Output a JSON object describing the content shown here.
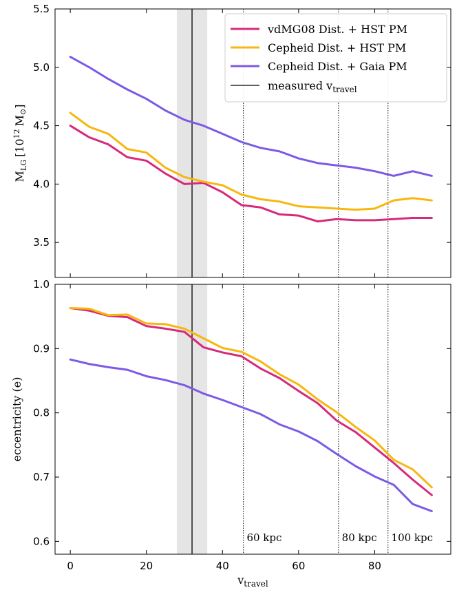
{
  "chart_data": [
    {
      "type": "line",
      "panel": "top",
      "ylabel_main": "M",
      "ylabel_sub": "LG",
      "ylabel_units": "[10",
      "ylabel_exp": "12",
      "ylabel_msun": "M",
      "ylabel_sun": "⊙",
      "ylabel_close": "]",
      "xlim": [
        -4,
        100
      ],
      "ylim": [
        3.2,
        5.5
      ],
      "yticks": [
        3.5,
        4.0,
        4.5,
        5.0,
        5.5
      ],
      "ytick_labels": [
        "3.5",
        "4.0",
        "4.5",
        "5.0",
        "5.5"
      ],
      "x": [
        0,
        5,
        10,
        15,
        20,
        25,
        30,
        35,
        40,
        45,
        50,
        55,
        60,
        65,
        70,
        75,
        80,
        85,
        90,
        95
      ],
      "series": [
        {
          "name": "vdMG08 Dist. + HST PM",
          "color": "#d62a7a",
          "values": [
            4.5,
            4.4,
            4.34,
            4.23,
            4.2,
            4.09,
            4.0,
            4.01,
            3.93,
            3.82,
            3.8,
            3.74,
            3.73,
            3.68,
            3.7,
            3.69,
            3.69,
            3.7,
            3.71,
            3.71
          ]
        },
        {
          "name": "Cepheid Dist. + HST PM",
          "color": "#f7b70f",
          "values": [
            4.61,
            4.49,
            4.43,
            4.3,
            4.27,
            4.14,
            4.06,
            4.02,
            3.99,
            3.91,
            3.87,
            3.85,
            3.81,
            3.8,
            3.79,
            3.78,
            3.79,
            3.86,
            3.88,
            3.86
          ]
        },
        {
          "name": "Cepheid Dist. + Gaia PM",
          "color": "#7b5ae6",
          "values": [
            5.09,
            5.0,
            4.9,
            4.81,
            4.73,
            4.63,
            4.55,
            4.5,
            4.43,
            4.36,
            4.31,
            4.28,
            4.22,
            4.18,
            4.16,
            4.14,
            4.11,
            4.07,
            4.11,
            4.07
          ]
        }
      ],
      "legend": {
        "placement": "top-right",
        "measured_label_main": "measured v",
        "measured_label_sub": "travel"
      }
    },
    {
      "type": "line",
      "panel": "bottom",
      "xlabel_main": "v",
      "xlabel_sub": "travel",
      "ylabel": "eccentricity (e)",
      "xlim": [
        -4,
        100
      ],
      "ylim": [
        0.58,
        1.0
      ],
      "xticks": [
        0,
        20,
        40,
        60,
        80
      ],
      "xtick_labels": [
        "0",
        "20",
        "40",
        "60",
        "80"
      ],
      "yticks": [
        0.6,
        0.7,
        0.8,
        0.9,
        1.0
      ],
      "ytick_labels": [
        "0.6",
        "0.7",
        "0.8",
        "0.9",
        "1.0"
      ],
      "x": [
        0,
        5,
        10,
        15,
        20,
        25,
        30,
        35,
        40,
        45,
        50,
        55,
        60,
        65,
        70,
        75,
        80,
        85,
        90,
        95
      ],
      "series": [
        {
          "name": "vdMG08 Dist. + HST PM",
          "color": "#d62a7a",
          "values": [
            0.963,
            0.959,
            0.951,
            0.949,
            0.935,
            0.931,
            0.926,
            0.902,
            0.894,
            0.888,
            0.869,
            0.854,
            0.834,
            0.815,
            0.788,
            0.77,
            0.746,
            0.722,
            0.696,
            0.672
          ]
        },
        {
          "name": "Cepheid Dist. + HST PM",
          "color": "#f7b70f",
          "values": [
            0.963,
            0.962,
            0.952,
            0.953,
            0.939,
            0.938,
            0.931,
            0.916,
            0.901,
            0.895,
            0.88,
            0.86,
            0.844,
            0.821,
            0.801,
            0.778,
            0.757,
            0.727,
            0.712,
            0.684
          ]
        },
        {
          "name": "Cepheid Dist. + Gaia PM",
          "color": "#7b5ae6",
          "values": [
            0.883,
            0.876,
            0.871,
            0.867,
            0.857,
            0.851,
            0.843,
            0.83,
            0.82,
            0.809,
            0.798,
            0.782,
            0.771,
            0.756,
            0.736,
            0.717,
            0.701,
            0.688,
            0.658,
            0.647
          ]
        }
      ],
      "annotations": [
        {
          "text": "60 kpc",
          "x": 46
        },
        {
          "text": "80 kpc",
          "x": 71
        },
        {
          "text": "100 kpc",
          "x": 84
        }
      ]
    }
  ],
  "shared": {
    "measured_vtravel": 32,
    "uncertainty_band": [
      28,
      36
    ],
    "distance_lines": [
      45.5,
      70.5,
      83.5
    ],
    "colors": {
      "band": "#e5e5e5",
      "axis": "#000000"
    }
  }
}
